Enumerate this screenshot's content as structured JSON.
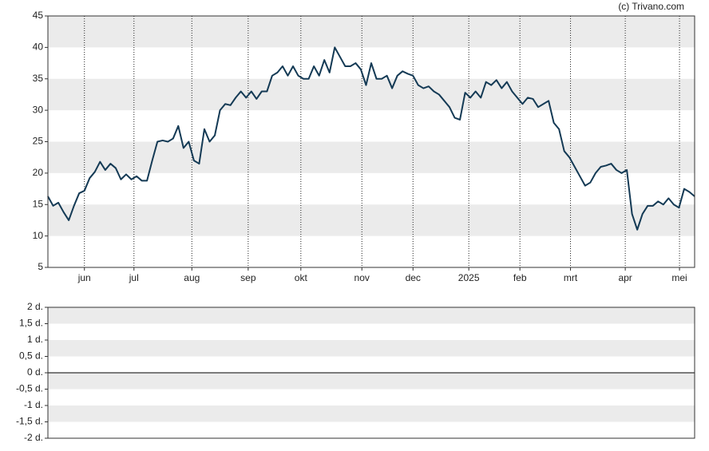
{
  "watermark": "(c) Trivano.com",
  "chart_data": [
    {
      "type": "line",
      "xlim": [
        0,
        124
      ],
      "xticks": [
        {
          "value": 7.0,
          "label": "jun"
        },
        {
          "value": 16.5,
          "label": "jul"
        },
        {
          "value": 27.6,
          "label": "aug"
        },
        {
          "value": 38.4,
          "label": "sep"
        },
        {
          "value": 48.5,
          "label": "okt"
        },
        {
          "value": 60.2,
          "label": "nov"
        },
        {
          "value": 70.0,
          "label": "dec"
        },
        {
          "value": 80.7,
          "label": "2025"
        },
        {
          "value": 90.5,
          "label": "feb"
        },
        {
          "value": 100.2,
          "label": "mrt"
        },
        {
          "value": 110.7,
          "label": "apr"
        },
        {
          "value": 121.1,
          "label": "mei"
        }
      ],
      "ylim": [
        5,
        45
      ],
      "yticks": [
        5,
        10,
        15,
        20,
        25,
        30,
        35,
        40,
        45
      ],
      "grid": true,
      "color": "#143a55",
      "values": [
        16.3,
        14.8,
        15.3,
        13.8,
        12.5,
        14.8,
        16.8,
        17.2,
        19.2,
        20.2,
        21.8,
        20.5,
        21.5,
        20.8,
        19.0,
        19.8,
        19.0,
        19.5,
        18.8,
        18.8,
        22.0,
        25.0,
        25.2,
        25.0,
        25.5,
        27.5,
        24.0,
        25.0,
        22.0,
        21.5,
        27.0,
        25.0,
        26.0,
        30.0,
        31.0,
        30.8,
        32.0,
        33.0,
        32.0,
        33.0,
        31.8,
        33.0,
        33.0,
        35.5,
        36.0,
        37.0,
        35.5,
        37.0,
        35.5,
        35.0,
        35.0,
        37.0,
        35.5,
        38.0,
        36.0,
        40.0,
        38.5,
        37.0,
        37.0,
        37.5,
        36.5,
        34.0,
        37.5,
        35.0,
        35.0,
        35.5,
        33.5,
        35.5,
        36.2,
        35.8,
        35.5,
        34.0,
        33.5,
        33.8,
        33.0,
        32.5,
        31.5,
        30.5,
        28.8,
        28.5,
        32.8,
        32.0,
        33.0,
        32.0,
        34.5,
        34.0,
        34.8,
        33.5,
        34.5,
        33.0,
        32.0,
        31.0,
        32.0,
        31.8,
        30.5,
        31.0,
        31.5,
        28.0,
        27.0,
        23.5,
        22.5,
        21.0,
        19.5,
        18.0,
        18.5,
        20.0,
        21.0,
        21.2,
        21.5,
        20.5,
        20.0,
        20.5,
        13.5,
        11.0,
        13.5,
        14.8,
        14.8,
        15.5,
        15.0,
        16.0,
        15.0,
        14.5,
        17.5,
        17.0,
        16.3
      ]
    },
    {
      "type": "line",
      "ylim": [
        -2,
        2
      ],
      "yticks": [
        {
          "value": 2,
          "label": "2 d."
        },
        {
          "value": 1.5,
          "label": "1,5 d."
        },
        {
          "value": 1,
          "label": "1 d."
        },
        {
          "value": 0.5,
          "label": "0,5 d."
        },
        {
          "value": 0,
          "label": "0 d."
        },
        {
          "value": -0.5,
          "label": "-0,5 d."
        },
        {
          "value": -1,
          "label": "-1 d."
        },
        {
          "value": -1.5,
          "label": "-1,5 d."
        },
        {
          "value": -2,
          "label": "-2 d."
        }
      ]
    }
  ]
}
